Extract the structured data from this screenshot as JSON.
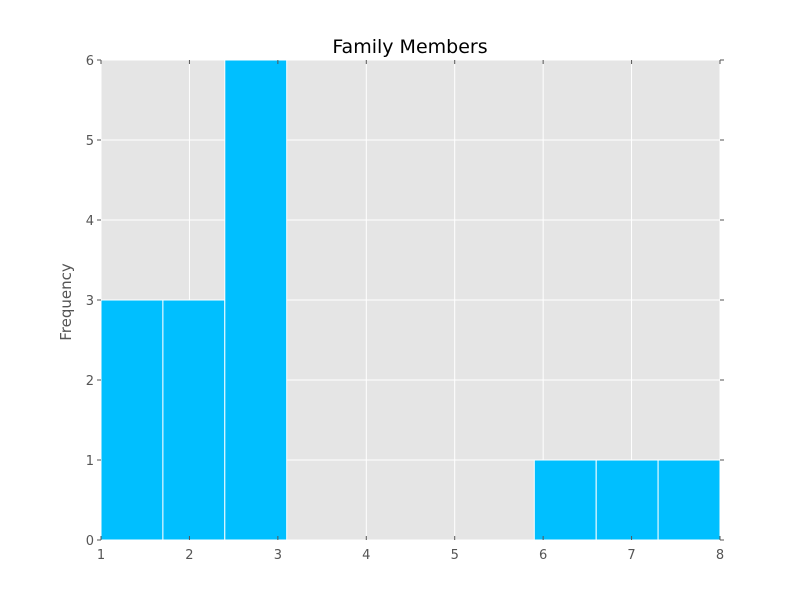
{
  "chart_data": {
    "type": "histogram",
    "title": "Family Members",
    "xlabel": "",
    "ylabel": "Frequency",
    "xlim": [
      1,
      8
    ],
    "ylim": [
      0,
      6
    ],
    "x_ticks": [
      1,
      2,
      3,
      4,
      5,
      6,
      7,
      8
    ],
    "y_ticks": [
      0,
      1,
      2,
      3,
      4,
      5,
      6
    ],
    "bin_edges": [
      1.0,
      1.7,
      2.4,
      3.1,
      3.8,
      4.5,
      5.2,
      5.9,
      6.6,
      7.3,
      8.0
    ],
    "counts": [
      3,
      3,
      6,
      0,
      0,
      0,
      0,
      1,
      1,
      1
    ],
    "grid": true,
    "colors": {
      "bar": "#00bfff",
      "bar_edge": "#ffffff",
      "plot_background": "#e5e5e5",
      "grid": "#ffffff",
      "title": "#000000",
      "label": "#555555"
    }
  }
}
